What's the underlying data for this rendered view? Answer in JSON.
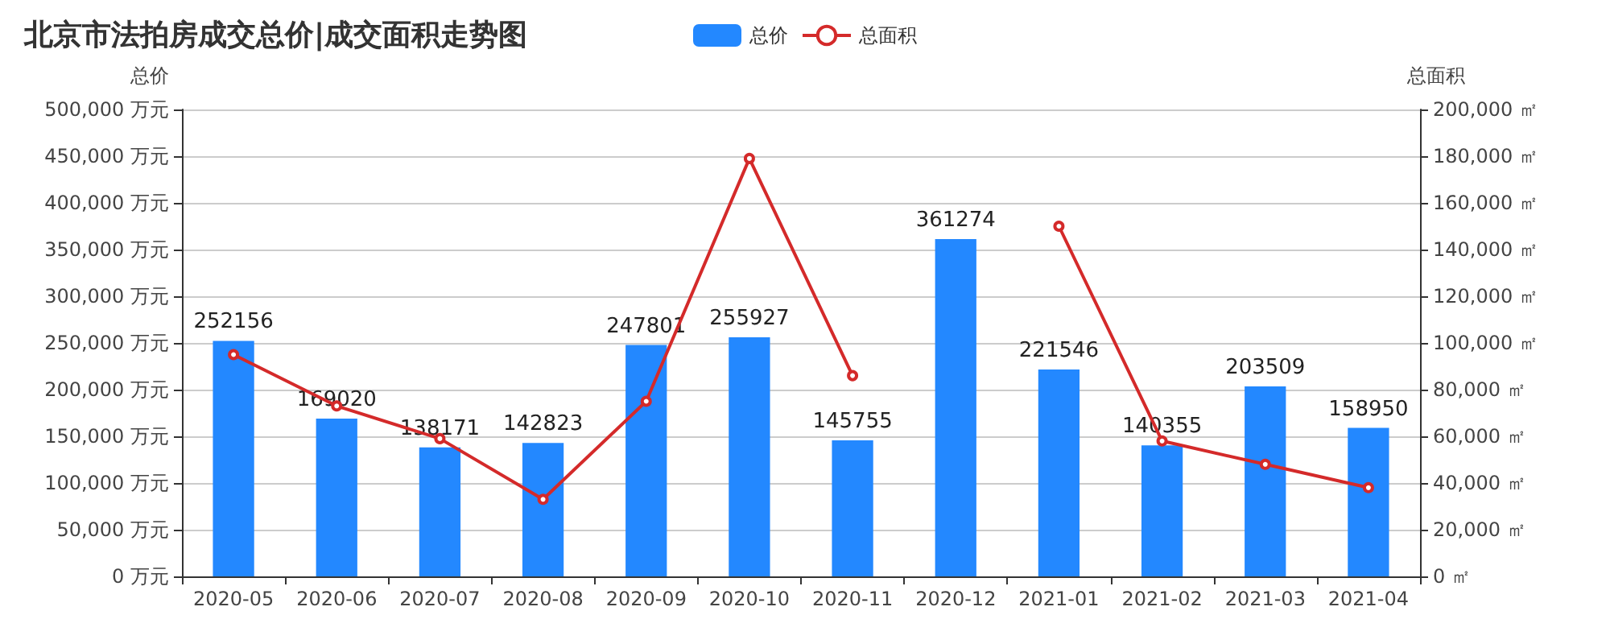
{
  "chart_data": {
    "type": "bar",
    "title": "北京市法拍房成交总价|成交面积走势图",
    "ylabel": "总价",
    "y2label": "总面积",
    "categories": [
      "2020-05",
      "2020-06",
      "2020-07",
      "2020-08",
      "2020-09",
      "2020-10",
      "2020-11",
      "2020-12",
      "2021-01",
      "2021-02",
      "2021-03",
      "2021-04"
    ],
    "series": [
      {
        "name": "总价",
        "color": "#2388ff",
        "values": [
          252156,
          169020,
          138171,
          142823,
          247801,
          255927,
          145755,
          361274,
          221546,
          140355,
          203509,
          158950
        ],
        "data_labels": true
      },
      {
        "name": "总面积",
        "type": "line",
        "axis": "y2",
        "color": "#d42a2a",
        "marker": "circle",
        "values": [
          95000,
          73000,
          59000,
          33000,
          75000,
          179000,
          86000,
          null,
          150000,
          58000,
          48000,
          38000
        ]
      }
    ],
    "ylim": [
      0,
      500000
    ],
    "yticks": [
      {
        "value": 0,
        "label": "0 万元"
      },
      {
        "value": 50000,
        "label": "50,000 万元"
      },
      {
        "value": 100000,
        "label": "100,000 万元"
      },
      {
        "value": 150000,
        "label": "150,000 万元"
      },
      {
        "value": 200000,
        "label": "200,000 万元"
      },
      {
        "value": 250000,
        "label": "250,000 万元"
      },
      {
        "value": 300000,
        "label": "300,000 万元"
      },
      {
        "value": 350000,
        "label": "350,000 万元"
      },
      {
        "value": 400000,
        "label": "400,000 万元"
      },
      {
        "value": 450000,
        "label": "450,000 万元"
      },
      {
        "value": 500000,
        "label": "500,000 万元"
      }
    ],
    "y2lim": [
      0,
      200000
    ],
    "y2ticks": [
      {
        "value": 0,
        "label": "0 ㎡"
      },
      {
        "value": 20000,
        "label": "20,000 ㎡"
      },
      {
        "value": 40000,
        "label": "40,000 ㎡"
      },
      {
        "value": 60000,
        "label": "60,000 ㎡"
      },
      {
        "value": 80000,
        "label": "80,000 ㎡"
      },
      {
        "value": 100000,
        "label": "100,000 ㎡"
      },
      {
        "value": 120000,
        "label": "120,000 ㎡"
      },
      {
        "value": 140000,
        "label": "140,000 ㎡"
      },
      {
        "value": 160000,
        "label": "160,000 ㎡"
      },
      {
        "value": 180000,
        "label": "180,000 ㎡"
      },
      {
        "value": 200000,
        "label": "200,000 ㎡"
      }
    ],
    "grid": "y",
    "legend": "top"
  }
}
